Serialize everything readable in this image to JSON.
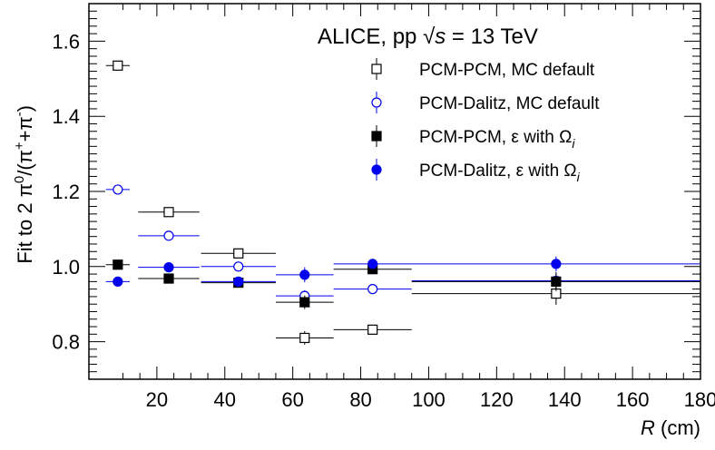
{
  "chart_data": {
    "type": "scatter",
    "header": "ALICE,  pp  √s = 13 TeV",
    "xlabel": "R (cm)",
    "ylabel": "Fit to 2 π⁰/(π⁺+π⁻)",
    "xlim": [
      0,
      180
    ],
    "ylim": [
      0.7,
      1.7
    ],
    "xticks": [
      20,
      40,
      60,
      80,
      100,
      120,
      140,
      160,
      180
    ],
    "yticks": [
      0.8,
      1.0,
      1.2,
      1.4,
      1.6
    ],
    "ytick_labels": [
      "0.8",
      "1.0",
      "1.2",
      "1.4",
      "1.6"
    ],
    "legend_position": "top-right",
    "series": [
      {
        "name": "PCM-PCM, MC default",
        "marker": "open-square",
        "color": "#000000",
        "points": [
          {
            "x": 8.5,
            "xerr": 3.5,
            "y": 1.535,
            "yerr": 0.012
          },
          {
            "x": 23.5,
            "xerr": 9,
            "y": 1.145,
            "yerr": 0.008
          },
          {
            "x": 44,
            "xerr": 11,
            "y": 1.035,
            "yerr": 0.012
          },
          {
            "x": 63.5,
            "xerr": 8.5,
            "y": 0.81,
            "yerr": 0.018
          },
          {
            "x": 83.5,
            "xerr": 11.5,
            "y": 0.832,
            "yerr": 0.008
          },
          {
            "x": 137.5,
            "xerr": 42.5,
            "y": 0.928,
            "yerr": 0.03
          }
        ]
      },
      {
        "name": "PCM-Dalitz, MC default",
        "marker": "open-circle",
        "color": "#0000ee",
        "points": [
          {
            "x": 8.5,
            "xerr": 3.5,
            "y": 1.205,
            "yerr": 0.01
          },
          {
            "x": 23.5,
            "xerr": 9,
            "y": 1.082,
            "yerr": 0.008
          },
          {
            "x": 44,
            "xerr": 11,
            "y": 1.0,
            "yerr": 0.01
          },
          {
            "x": 63.5,
            "xerr": 8.5,
            "y": 0.922,
            "yerr": 0.015
          },
          {
            "x": 83.5,
            "xerr": 11.5,
            "y": 0.94,
            "yerr": 0.008
          },
          {
            "x": 137.5,
            "xerr": 42.5,
            "y": 0.962,
            "yerr": 0.02
          }
        ]
      },
      {
        "name": "PCM-PCM, ε with Ω",
        "name_sub": "i",
        "marker": "filled-square",
        "color": "#000000",
        "points": [
          {
            "x": 8.5,
            "xerr": 3.5,
            "y": 1.005,
            "yerr": 0.008
          },
          {
            "x": 23.5,
            "xerr": 9,
            "y": 0.968,
            "yerr": 0.008
          },
          {
            "x": 44,
            "xerr": 11,
            "y": 0.957,
            "yerr": 0.01
          },
          {
            "x": 63.5,
            "xerr": 8.5,
            "y": 0.905,
            "yerr": 0.018
          },
          {
            "x": 83.5,
            "xerr": 11.5,
            "y": 0.993,
            "yerr": 0.008
          },
          {
            "x": 137.5,
            "xerr": 42.5,
            "y": 0.96,
            "yerr": 0.025
          }
        ]
      },
      {
        "name": "PCM-Dalitz, ε with Ω",
        "name_sub": "i",
        "marker": "filled-circle",
        "color": "#0000ee",
        "points": [
          {
            "x": 8.5,
            "xerr": 3.5,
            "y": 0.96,
            "yerr": 0.008
          },
          {
            "x": 23.5,
            "xerr": 9,
            "y": 0.998,
            "yerr": 0.006
          },
          {
            "x": 44,
            "xerr": 11,
            "y": 0.96,
            "yerr": 0.008
          },
          {
            "x": 63.5,
            "xerr": 8.5,
            "y": 0.978,
            "yerr": 0.02
          },
          {
            "x": 83.5,
            "xerr": 11.5,
            "y": 1.007,
            "yerr": 0.008
          },
          {
            "x": 137.5,
            "xerr": 42.5,
            "y": 1.007,
            "yerr": 0.02
          }
        ]
      }
    ]
  }
}
